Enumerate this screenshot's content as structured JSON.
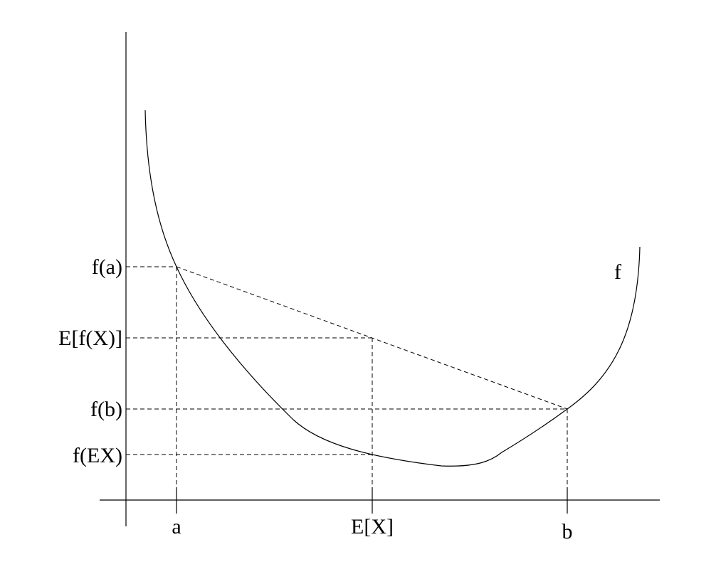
{
  "diagram": {
    "curve_label": "f",
    "y_labels": {
      "f_a": "f(a)",
      "e_fx": "E[f(X)]",
      "f_b": "f(b)",
      "f_ex": "f(EX)"
    },
    "x_labels": {
      "a": "a",
      "ex": "E[X]",
      "b": "b"
    }
  }
}
